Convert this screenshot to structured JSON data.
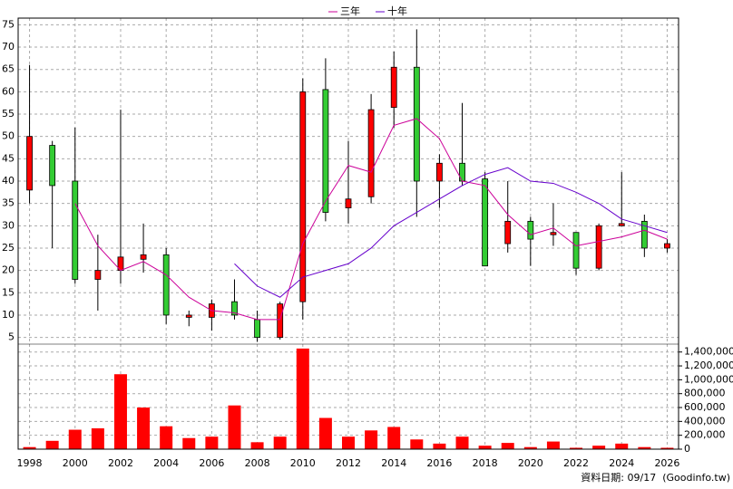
{
  "chart_data": [
    {
      "type": "candlestick",
      "x": [
        1998,
        1999,
        2000,
        2001,
        2002,
        2003,
        2004,
        2005,
        2006,
        2007,
        2008,
        2009,
        2010,
        2011,
        2012,
        2013,
        2014,
        2015,
        2016,
        2017,
        2018,
        2019,
        2020,
        2021,
        2022,
        2023,
        2024,
        2025,
        2026
      ],
      "open": [
        38,
        48,
        40,
        18,
        20,
        22.5,
        23.5,
        9.5,
        9.5,
        13,
        9,
        5,
        13,
        60.5,
        34,
        36.5,
        56.5,
        65.5,
        40,
        44,
        40.5,
        26,
        31,
        28,
        28.5,
        20.5,
        30,
        31,
        25
      ],
      "high": [
        66,
        49,
        52,
        28,
        56,
        30.5,
        25,
        11,
        13.5,
        18,
        11,
        13,
        63,
        67.5,
        49,
        59.5,
        69,
        74,
        46,
        57.5,
        42,
        40,
        32,
        35,
        28.5,
        30.5,
        42,
        32.5,
        27
      ],
      "low": [
        35,
        25,
        17,
        11,
        17,
        19.5,
        8,
        7.5,
        6.5,
        9,
        4,
        4.5,
        9,
        31,
        30.5,
        35,
        52,
        32,
        34,
        39,
        21,
        24,
        21,
        25.5,
        19,
        20,
        30,
        23,
        24
      ],
      "close": [
        50,
        39,
        18,
        20,
        23,
        23.5,
        10,
        10,
        12.5,
        10,
        5,
        12.5,
        60,
        33,
        36,
        56,
        65.5,
        40,
        44,
        40,
        21,
        31,
        27,
        28.5,
        20.5,
        30,
        30.5,
        25,
        26
      ],
      "up_color": "#ff0000",
      "down_color": "#33cc33",
      "series": [
        {
          "name": "三年",
          "color": "#cc0099",
          "values": [
            null,
            null,
            35,
            25.5,
            20,
            22,
            19,
            14,
            11,
            10.5,
            9,
            9,
            26,
            35.5,
            43.5,
            42,
            52.5,
            54,
            49.5,
            40,
            39,
            32.5,
            28,
            29.5,
            25.5,
            26.5,
            27.5,
            29,
            27
          ]
        },
        {
          "name": "十年",
          "color": "#6600cc",
          "values": [
            null,
            null,
            null,
            null,
            null,
            null,
            null,
            null,
            null,
            21.5,
            16.5,
            14,
            18.5,
            20,
            21.5,
            25,
            30,
            33,
            36,
            39,
            41.5,
            43,
            40,
            39.5,
            37.5,
            35,
            31.5,
            30,
            28.5
          ]
        }
      ],
      "xlim": [
        1997.5,
        2026.5
      ],
      "xticks": [
        1998,
        2000,
        2002,
        2004,
        2006,
        2008,
        2010,
        2012,
        2014,
        2016,
        2018,
        2020,
        2022,
        2024,
        2026
      ],
      "ylim": [
        3.5,
        76.5
      ],
      "yticks": [
        5,
        10,
        15,
        20,
        25,
        30,
        35,
        40,
        45,
        50,
        55,
        60,
        65,
        70,
        75
      ],
      "grid": true
    },
    {
      "type": "bar",
      "x": [
        1998,
        1999,
        2000,
        2001,
        2002,
        2003,
        2004,
        2005,
        2006,
        2007,
        2008,
        2009,
        2010,
        2011,
        2012,
        2013,
        2014,
        2015,
        2016,
        2017,
        2018,
        2019,
        2020,
        2021,
        2022,
        2023,
        2024,
        2025,
        2026
      ],
      "values": [
        30000,
        120000,
        280000,
        300000,
        1080000,
        600000,
        330000,
        160000,
        180000,
        630000,
        100000,
        180000,
        1450000,
        450000,
        180000,
        270000,
        320000,
        140000,
        80000,
        180000,
        50000,
        90000,
        30000,
        110000,
        20000,
        50000,
        80000,
        30000,
        20000
      ],
      "color": "#ff0000",
      "ylim": [
        0,
        1540000
      ],
      "yticks": [
        0,
        {
          "value": 200000,
          "label": "200,000"
        },
        {
          "value": 400000,
          "label": "400,000"
        },
        {
          "value": 600000,
          "label": "600,000"
        },
        {
          "value": 800000,
          "label": "800,000"
        },
        {
          "value": 1000000,
          "label": "1,000,000"
        },
        {
          "value": 1200000,
          "label": "1,200,000"
        },
        {
          "value": 1400000,
          "label": "1,400,000"
        }
      ],
      "grid": true
    }
  ],
  "footnote": "資料日期: 09/17  (Goodinfo.tw)"
}
